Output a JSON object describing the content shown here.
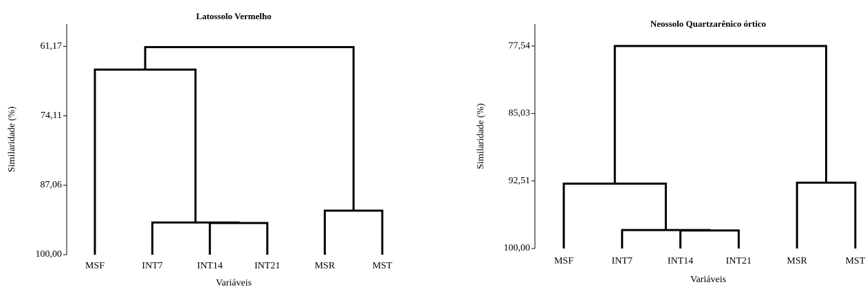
{
  "chart_data": [
    {
      "type": "dendrogram",
      "title": "Latossolo Vermelho",
      "ylabel": "Similaridade (%)",
      "xlabel": "Variáveis",
      "categories": [
        "MSF",
        "INT7",
        "INT14",
        "INT21",
        "MSR",
        "MST"
      ],
      "merges": [
        {
          "join": [
            2,
            3
          ],
          "value": 94.1
        },
        {
          "join": [
            1,
            6
          ],
          "value": 94.0
        },
        {
          "join": [
            4,
            5
          ],
          "value": 91.8
        },
        {
          "join": [
            0,
            7
          ],
          "value": 65.5
        },
        {
          "join": [
            9,
            8
          ],
          "value": 61.3
        }
      ],
      "ylim": [
        57,
        100
      ],
      "inverted": true,
      "yticks": [
        {
          "value": 61.17,
          "label": "61,17"
        },
        {
          "value": 74.11,
          "label": "74,11"
        },
        {
          "value": 87.06,
          "label": "87,06"
        },
        {
          "value": 100,
          "label": "100,00"
        }
      ],
      "color": "#000000"
    },
    {
      "type": "dendrogram",
      "title": "Neossolo Quartzarênico órtico",
      "ylabel": "Similaridade (%)",
      "xlabel": "Variáveis",
      "categories": [
        "MSF",
        "INT7",
        "INT14",
        "INT21",
        "MSR",
        "MST"
      ],
      "merges": [
        {
          "join": [
            2,
            3
          ],
          "value": 98.0
        },
        {
          "join": [
            1,
            6
          ],
          "value": 97.95
        },
        {
          "join": [
            0,
            7
          ],
          "value": 92.8
        },
        {
          "join": [
            4,
            5
          ],
          "value": 92.7
        },
        {
          "join": [
            8,
            9
          ],
          "value": 77.54
        }
      ],
      "ylim": [
        75.1,
        100
      ],
      "inverted": true,
      "yticks": [
        {
          "value": 77.54,
          "label": "77,54"
        },
        {
          "value": 85.03,
          "label": "85,03"
        },
        {
          "value": 92.51,
          "label": "92,51"
        },
        {
          "value": 100,
          "label": "100,00"
        }
      ],
      "color": "#000000"
    }
  ]
}
